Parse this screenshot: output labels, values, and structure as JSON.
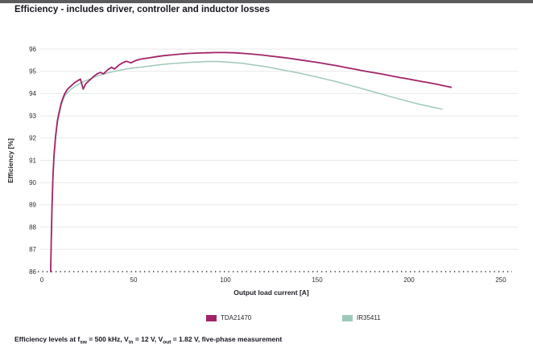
{
  "chart_data": {
    "type": "line",
    "title": "Efficiency - includes driver, controller and inductor losses",
    "xlabel": "Output load current [A]",
    "ylabel": "Efficiency [%]",
    "xlim": [
      0,
      250
    ],
    "ylim": [
      86,
      96
    ],
    "xticks": [
      0,
      50,
      100,
      150,
      200,
      250
    ],
    "yticks": [
      86,
      87,
      88,
      89,
      90,
      91,
      92,
      93,
      94,
      95,
      96
    ],
    "grid": true,
    "legend_position": "bottom",
    "series": [
      {
        "name": "TDA21470",
        "color": "#a32369",
        "points": [
          [
            4.8,
            86.0
          ],
          [
            5.1,
            87.3
          ],
          [
            5.5,
            88.8
          ],
          [
            6.0,
            90.2
          ],
          [
            6.6,
            91.2
          ],
          [
            7.5,
            92.1
          ],
          [
            8.5,
            92.8
          ],
          [
            9.5,
            93.2
          ],
          [
            10.5,
            93.55
          ],
          [
            11.5,
            93.8
          ],
          [
            12.5,
            94.0
          ],
          [
            14,
            94.2
          ],
          [
            16,
            94.35
          ],
          [
            18,
            94.5
          ],
          [
            20,
            94.6
          ],
          [
            21,
            94.65
          ],
          [
            22.5,
            94.2
          ],
          [
            24,
            94.45
          ],
          [
            26,
            94.6
          ],
          [
            28,
            94.75
          ],
          [
            30,
            94.88
          ],
          [
            32,
            94.95
          ],
          [
            33.5,
            94.88
          ],
          [
            36,
            95.08
          ],
          [
            38,
            95.18
          ],
          [
            39.5,
            95.1
          ],
          [
            42,
            95.28
          ],
          [
            44,
            95.38
          ],
          [
            46,
            95.45
          ],
          [
            48.5,
            95.38
          ],
          [
            51,
            95.48
          ],
          [
            54,
            95.55
          ],
          [
            58,
            95.6
          ],
          [
            62,
            95.65
          ],
          [
            66,
            95.7
          ],
          [
            70,
            95.73
          ],
          [
            75,
            95.77
          ],
          [
            80,
            95.8
          ],
          [
            85,
            95.82
          ],
          [
            90,
            95.83
          ],
          [
            95,
            95.84
          ],
          [
            100,
            95.84
          ],
          [
            105,
            95.83
          ],
          [
            110,
            95.8
          ],
          [
            115,
            95.77
          ],
          [
            120,
            95.73
          ],
          [
            125,
            95.68
          ],
          [
            130,
            95.63
          ],
          [
            135,
            95.58
          ],
          [
            140,
            95.52
          ],
          [
            145,
            95.46
          ],
          [
            150,
            95.4
          ],
          [
            155,
            95.33
          ],
          [
            160,
            95.26
          ],
          [
            165,
            95.18
          ],
          [
            170,
            95.1
          ],
          [
            175,
            95.02
          ],
          [
            180,
            94.95
          ],
          [
            185,
            94.88
          ],
          [
            190,
            94.8
          ],
          [
            195,
            94.72
          ],
          [
            200,
            94.65
          ],
          [
            205,
            94.57
          ],
          [
            210,
            94.5
          ],
          [
            215,
            94.42
          ],
          [
            219,
            94.35
          ],
          [
            223,
            94.28
          ]
        ]
      },
      {
        "name": "IR35411",
        "color": "#9ec9ba",
        "points": [
          [
            4.8,
            86.0
          ],
          [
            5.1,
            87.2
          ],
          [
            5.5,
            88.7
          ],
          [
            6.0,
            90.1
          ],
          [
            6.6,
            91.1
          ],
          [
            7.5,
            92.0
          ],
          [
            8.5,
            92.7
          ],
          [
            9.5,
            93.1
          ],
          [
            10.5,
            93.45
          ],
          [
            11.5,
            93.7
          ],
          [
            12.5,
            93.9
          ],
          [
            14,
            94.05
          ],
          [
            16,
            94.2
          ],
          [
            18,
            94.32
          ],
          [
            20,
            94.42
          ],
          [
            23,
            94.55
          ],
          [
            26,
            94.65
          ],
          [
            30,
            94.78
          ],
          [
            34,
            94.88
          ],
          [
            38,
            94.97
          ],
          [
            42,
            95.04
          ],
          [
            46,
            95.1
          ],
          [
            50,
            95.15
          ],
          [
            55,
            95.2
          ],
          [
            60,
            95.25
          ],
          [
            65,
            95.3
          ],
          [
            70,
            95.34
          ],
          [
            75,
            95.37
          ],
          [
            80,
            95.4
          ],
          [
            85,
            95.42
          ],
          [
            90,
            95.44
          ],
          [
            95,
            95.44
          ],
          [
            100,
            95.42
          ],
          [
            105,
            95.39
          ],
          [
            110,
            95.35
          ],
          [
            115,
            95.29
          ],
          [
            120,
            95.23
          ],
          [
            125,
            95.16
          ],
          [
            130,
            95.08
          ],
          [
            135,
            95.0
          ],
          [
            140,
            94.92
          ],
          [
            145,
            94.83
          ],
          [
            150,
            94.74
          ],
          [
            155,
            94.64
          ],
          [
            160,
            94.54
          ],
          [
            165,
            94.43
          ],
          [
            170,
            94.32
          ],
          [
            175,
            94.21
          ],
          [
            180,
            94.09
          ],
          [
            185,
            93.98
          ],
          [
            190,
            93.86
          ],
          [
            195,
            93.75
          ],
          [
            200,
            93.64
          ],
          [
            205,
            93.53
          ],
          [
            210,
            93.44
          ],
          [
            214,
            93.37
          ],
          [
            218,
            93.3
          ]
        ]
      }
    ]
  },
  "footnote": {
    "segments": [
      {
        "t": "Efficiency levels at f"
      },
      {
        "t": "sw",
        "sub": true
      },
      {
        "t": " = 500 kHz, V"
      },
      {
        "t": "in",
        "sub": true
      },
      {
        "t": " = 12 V, V"
      },
      {
        "t": "out",
        "sub": true
      },
      {
        "t": " = 1.82 V, five-phase measurement"
      }
    ]
  }
}
